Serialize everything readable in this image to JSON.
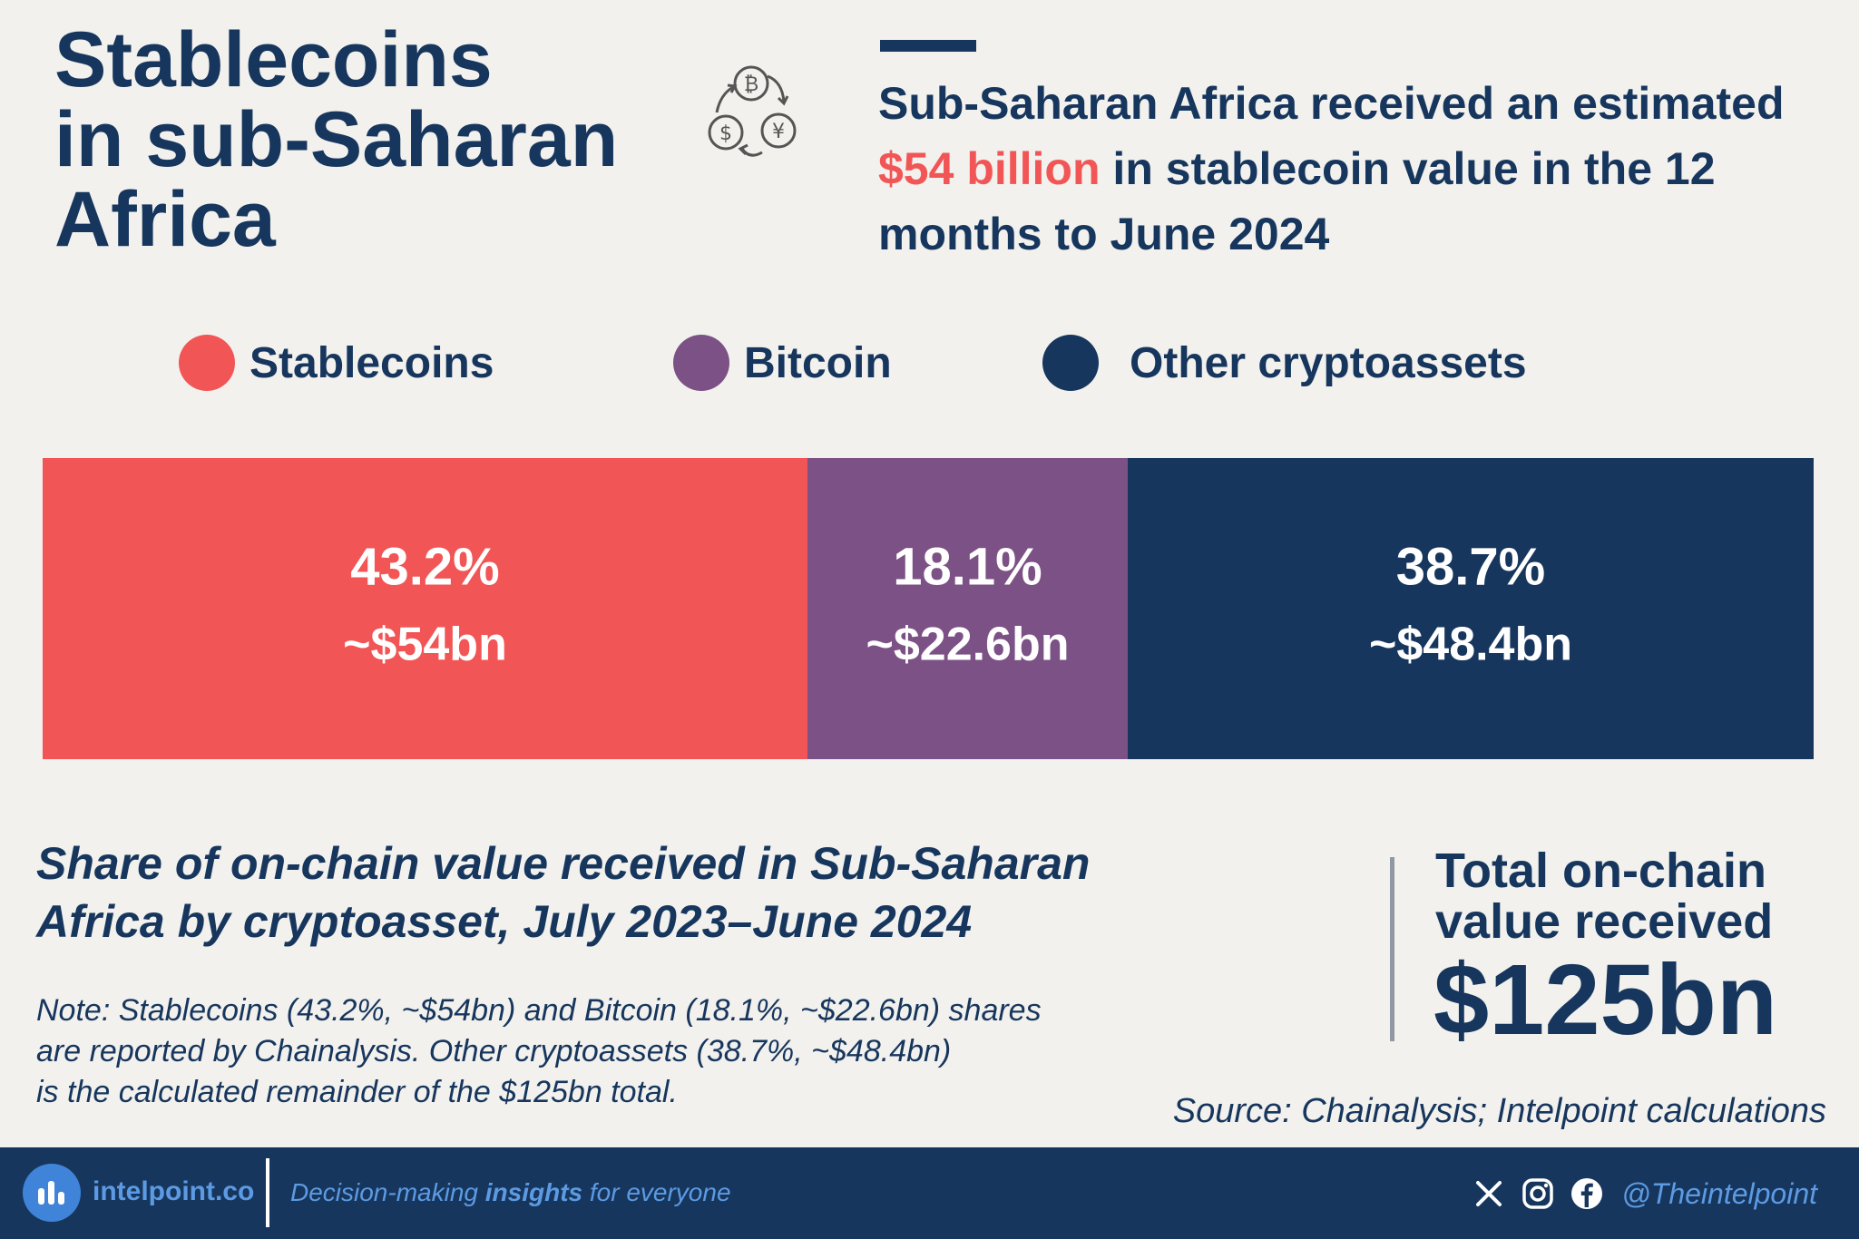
{
  "title_lines": [
    "Stablecoins",
    "in sub-Saharan",
    "Africa"
  ],
  "headline": {
    "prefix": "Sub-Saharan Africa received an estimated",
    "highlight": "$54 billion",
    "suffix": "in stablecoin value in the 12 months to June 2024"
  },
  "colors": {
    "stablecoins": "#f25555",
    "bitcoin": "#7c5185",
    "other": "#17365d",
    "highlight": "#f25555",
    "navy": "#17365d",
    "footer_accent": "#5c9be3"
  },
  "legend": [
    {
      "label": "Stablecoins",
      "color": "#f25555"
    },
    {
      "label": "Bitcoin",
      "color": "#7c5185"
    },
    {
      "label": "Other cryptoassets",
      "color": "#17365d"
    }
  ],
  "chart_data": {
    "type": "bar",
    "variant": "100% stacked horizontal bar",
    "categories": [
      "Stablecoins",
      "Bitcoin",
      "Other cryptoassets"
    ],
    "values": [
      43.2,
      18.1,
      38.7
    ],
    "unit": "%",
    "amounts_bn": [
      54,
      22.6,
      48.4
    ],
    "percent_labels": [
      "43.2%",
      "18.1%",
      "38.7%"
    ],
    "amount_labels": [
      "~$54bn",
      "~$22.6bn",
      "~$48.4bn"
    ],
    "colors": [
      "#f25555",
      "#7c5185",
      "#17365d"
    ],
    "title": "Share of on-chain value received in Sub-Saharan Africa by cryptoasset, July 2023–June 2024",
    "legend_position": "top",
    "grid": false
  },
  "subtitle": "Share of on-chain value received in Sub-Saharan Africa by cryptoasset, July 2023–June 2024",
  "note_lines": [
    "Note: Stablecoins (43.2%, ~$54bn) and Bitcoin (18.1%, ~$22.6bn) shares",
    "are reported by Chainalysis. Other cryptoassets (38.7%, ~$48.4bn)",
    "is the calculated remainder of the $125bn total."
  ],
  "total": {
    "label_lines": [
      "Total on-chain",
      "value received"
    ],
    "value": "$125bn"
  },
  "source": "Source: Chainalysis; Intelpoint calculations",
  "footer": {
    "domain": "intelpoint.co",
    "tagline_pre": "Decision-making",
    "tagline_bold": "insights",
    "tagline_post": "for everyone",
    "handle": "@Theintelpoint",
    "social_icons": [
      "x-icon",
      "instagram-icon",
      "facebook-icon"
    ]
  }
}
